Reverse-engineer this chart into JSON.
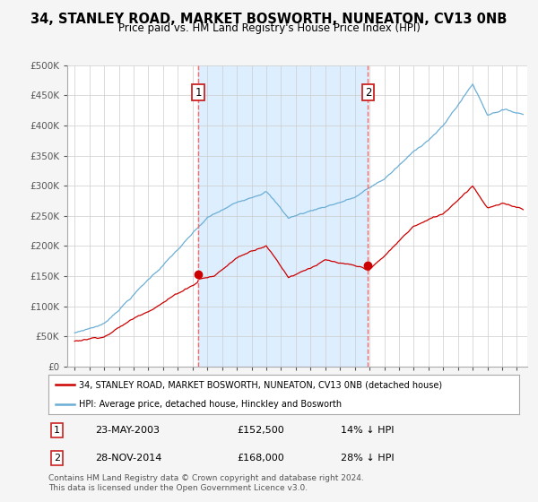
{
  "title": "34, STANLEY ROAD, MARKET BOSWORTH, NUNEATON, CV13 0NB",
  "subtitle": "Price paid vs. HM Land Registry's House Price Index (HPI)",
  "footer": "Contains HM Land Registry data © Crown copyright and database right 2024.\nThis data is licensed under the Open Government Licence v3.0.",
  "legend_line1": "34, STANLEY ROAD, MARKET BOSWORTH, NUNEATON, CV13 0NB (detached house)",
  "legend_line2": "HPI: Average price, detached house, Hinckley and Bosworth",
  "transaction1_date": "23-MAY-2003",
  "transaction1_price": "£152,500",
  "transaction1_hpi": "14% ↓ HPI",
  "transaction1_year": 2003.38,
  "transaction1_value": 152500,
  "transaction2_date": "28-NOV-2014",
  "transaction2_price": "£168,000",
  "transaction2_hpi": "28% ↓ HPI",
  "transaction2_year": 2014.9,
  "transaction2_value": 168000,
  "hpi_color": "#6baed6",
  "price_color": "#cc0000",
  "vline_color": "#ff6666",
  "marker_color": "#cc0000",
  "shade_color": "#ddeeff",
  "background_color": "#f5f5f5",
  "plot_bg_color": "#ffffff",
  "ylim": [
    0,
    500000
  ],
  "yticks": [
    0,
    50000,
    100000,
    150000,
    200000,
    250000,
    300000,
    350000,
    400000,
    450000,
    500000
  ],
  "xstart": 1995,
  "xend": 2025
}
